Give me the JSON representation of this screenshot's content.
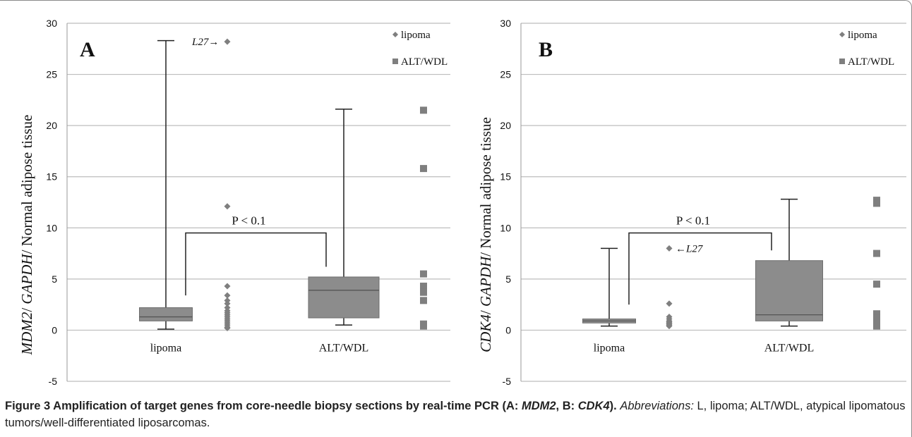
{
  "chart_data": [
    {
      "type": "box",
      "panel_label": "A",
      "ylabel": [
        "MDM2",
        "/ ",
        "GAPDH",
        "/ Normal adipose tissue"
      ],
      "ylim": [
        -5,
        30
      ],
      "yticks": [
        -5,
        0,
        5,
        10,
        15,
        20,
        25,
        30
      ],
      "grid": true,
      "legend_position": "top-right",
      "categories": [
        "lipoma",
        "ALT/WDL"
      ],
      "boxes": [
        {
          "category": "lipoma",
          "min": 0.1,
          "q1": 0.9,
          "median": 1.3,
          "q3": 2.2,
          "max": 28.3
        },
        {
          "category": "ALT/WDL",
          "min": 0.5,
          "q1": 1.2,
          "median": 3.9,
          "q3": 5.2,
          "max": 21.6
        }
      ],
      "series": [
        {
          "name": "lipoma",
          "marker": "diamond",
          "category": "lipoma",
          "values": [
            28.2,
            12.1,
            4.3,
            3.4,
            2.9,
            2.6,
            2.2,
            1.9,
            1.7,
            1.5,
            1.3,
            1.1,
            0.9,
            0.7,
            0.5,
            0.3,
            0.2
          ]
        },
        {
          "name": "ALT/WDL",
          "marker": "square",
          "category": "ALT/WDL",
          "values": [
            21.5,
            15.8,
            5.5,
            4.3,
            4.0,
            3.7,
            2.9,
            0.6,
            0.4
          ]
        }
      ],
      "annotations": {
        "outlier_label": "L27→",
        "outlier_value": 28.2,
        "pvalue": "P < 0.1",
        "bracket_left": 3.4,
        "bracket_right": 6.2,
        "bracket_top": 9.5
      }
    },
    {
      "type": "box",
      "panel_label": "B",
      "ylabel": [
        "CDK4",
        "/ ",
        "GAPDH",
        "/ Normal adipose tissue"
      ],
      "ylim": [
        -5,
        30
      ],
      "yticks": [
        -5,
        0,
        5,
        10,
        15,
        20,
        25,
        30
      ],
      "grid": true,
      "legend_position": "top-right",
      "categories": [
        "lipoma",
        "ALT/WDL"
      ],
      "boxes": [
        {
          "category": "lipoma",
          "min": 0.4,
          "q1": 0.7,
          "median": 0.9,
          "q3": 1.1,
          "max": 8.0
        },
        {
          "category": "ALT/WDL",
          "min": 0.4,
          "q1": 0.9,
          "median": 1.5,
          "q3": 6.8,
          "max": 12.8
        }
      ],
      "series": [
        {
          "name": "lipoma",
          "marker": "diamond",
          "category": "lipoma",
          "values": [
            8.0,
            2.6,
            1.3,
            1.1,
            0.9,
            0.8,
            0.7,
            0.6,
            0.5,
            0.4
          ]
        },
        {
          "name": "ALT/WDL",
          "marker": "square",
          "category": "ALT/WDL",
          "values": [
            12.7,
            12.4,
            7.5,
            4.5,
            1.6,
            1.2,
            0.8,
            0.4
          ]
        }
      ],
      "annotations": {
        "outlier_label": "←L27",
        "outlier_value": 8.0,
        "pvalue": "P < 0.1",
        "bracket_left": 2.5,
        "bracket_right": 7.8,
        "bracket_top": 9.5
      }
    }
  ],
  "caption": {
    "title": "Figure 3 Amplification of target genes from core-needle biopsy sections by real-time PCR (A: ",
    "title_gene_a": "MDM2",
    "title_mid": ", B: ",
    "title_gene_b": "CDK4",
    "title_end": ").",
    "abbr_label": "Abbreviations:",
    "abbr_text": " L, lipoma; ALT/WDL, atypical lipomatous tumors/well-differentiated liposarcomas."
  },
  "colors": {
    "box_fill": "#8c8c8c",
    "box_stroke": "#6e6e6e",
    "marker": "#7f7f7f",
    "grid": "#bdbdbd",
    "text": "#111111"
  }
}
